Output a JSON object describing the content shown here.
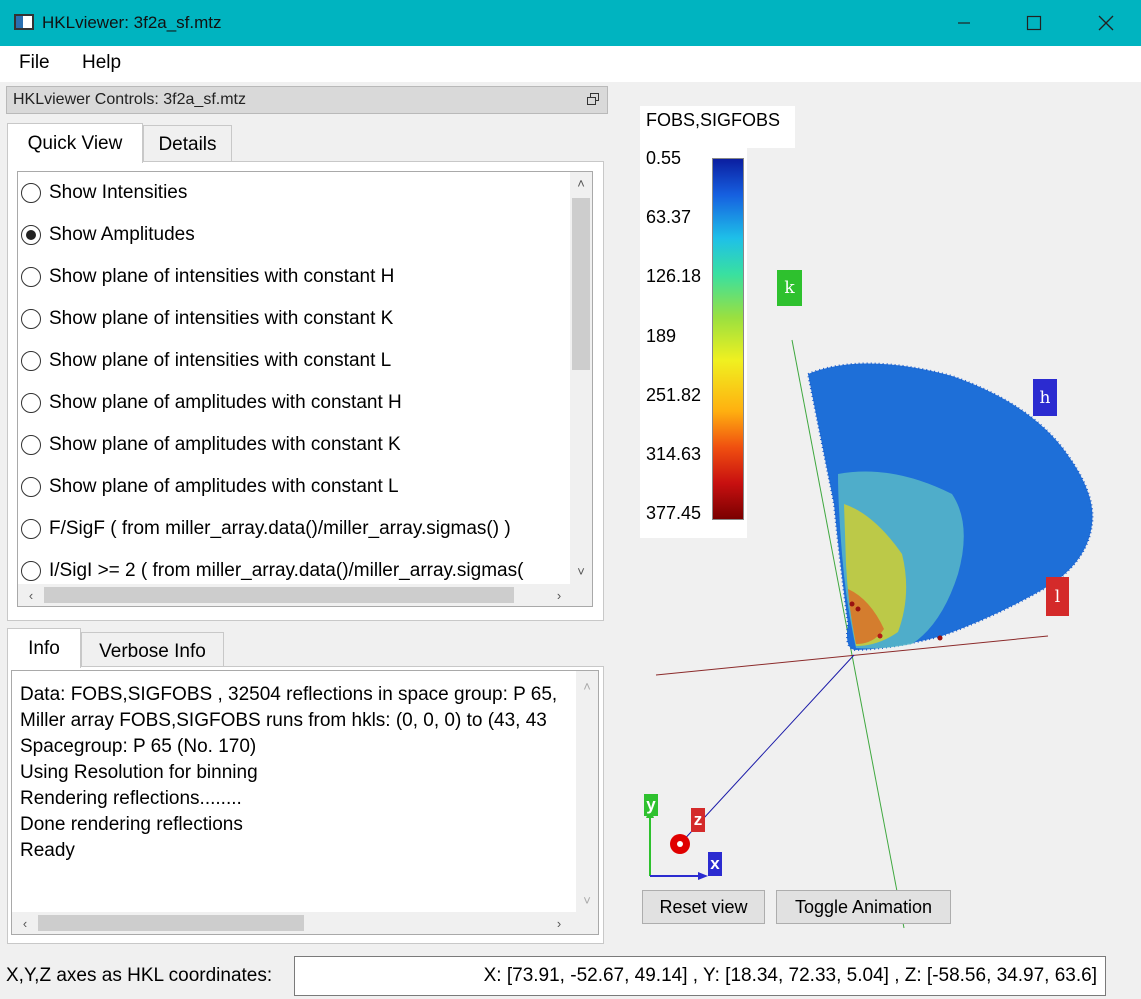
{
  "window": {
    "title": "HKLviewer: 3f2a_sf.mtz",
    "icon": "app-window-icon",
    "controls": [
      "minimize-icon",
      "maximize-icon",
      "close-icon"
    ]
  },
  "menu": {
    "file": "File",
    "help": "Help"
  },
  "dock": {
    "title": "HKLviewer Controls: 3f2a_sf.mtz"
  },
  "top_tabs": {
    "quick_view": "Quick View",
    "details": "Details"
  },
  "quick_view": {
    "options": [
      {
        "label": "Show Intensities",
        "checked": false
      },
      {
        "label": "Show Amplitudes",
        "checked": true
      },
      {
        "label": "Show plane of intensities with constant H",
        "checked": false
      },
      {
        "label": "Show plane of intensities with constant K",
        "checked": false
      },
      {
        "label": "Show plane of intensities with constant L",
        "checked": false
      },
      {
        "label": "Show plane of amplitudes with constant H",
        "checked": false
      },
      {
        "label": "Show plane of amplitudes with constant K",
        "checked": false
      },
      {
        "label": "Show plane of amplitudes with constant L",
        "checked": false
      },
      {
        "label": "F/SigF ( from miller_array.data()/miller_array.sigmas() )",
        "checked": false
      },
      {
        "label": "I/SigI >= 2 ( from miller_array.data()/miller_array.sigmas(",
        "checked": false
      }
    ]
  },
  "bottom_tabs": {
    "info": "Info",
    "verbose_info": "Verbose Info"
  },
  "info_lines": [
    "Data: FOBS,SIGFOBS , 32504 reflections in space group: P 65,",
    "Miller array FOBS,SIGFOBS runs from hkls: (0, 0, 0) to (43, 43",
    "Spacegroup: P 65 (No. 170)",
    "Using Resolution for binning",
    "Rendering reflections........",
    "Done rendering reflections",
    "Ready"
  ],
  "legend": {
    "title": "FOBS,SIGFOBS",
    "labels": [
      "0.55",
      "63.37",
      "126.18",
      "189",
      "251.82",
      "314.63",
      "377.45"
    ],
    "colors": [
      "#0b1ea0",
      "#1ec0e8",
      "#9ae040",
      "#f0f020",
      "#ffb010",
      "#c81010",
      "#7a0000"
    ]
  },
  "axes": {
    "k": "k",
    "h": "h",
    "l": "l",
    "x": "x",
    "y": "y",
    "z": "z"
  },
  "axis_colors": {
    "k": "#2ec12e",
    "h": "#2b2bd0",
    "l": "#d42a2a"
  },
  "buttons": {
    "reset": "Reset view",
    "toggle": "Toggle Animation"
  },
  "status": {
    "label": "X,Y,Z axes as HKL coordinates:",
    "value": "X: [73.91, -52.67, 49.14] , Y: [18.34, 72.33, 5.04] , Z: [-58.56, 34.97, 63.6]"
  }
}
